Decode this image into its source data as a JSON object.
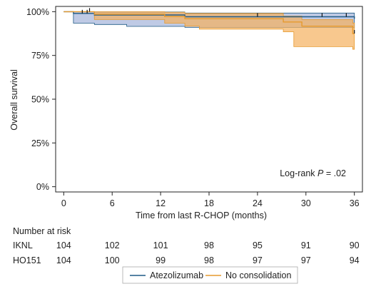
{
  "chart_data": {
    "type": "line",
    "subtype": "kaplan-meier",
    "xlabel": "Time from last R-CHOP (months)",
    "ylabel": "Overall survival",
    "xlim": [
      -1,
      37
    ],
    "ylim": [
      -0.03,
      1.03
    ],
    "x_ticks": [
      0,
      6,
      12,
      18,
      24,
      30,
      36
    ],
    "y_ticks": [
      {
        "value": 0,
        "label": "0%"
      },
      {
        "value": 0.25,
        "label": "25%"
      },
      {
        "value": 0.5,
        "label": "50%"
      },
      {
        "value": 0.75,
        "label": "75%"
      },
      {
        "value": 1,
        "label": "100%"
      }
    ],
    "annotation": {
      "prefix": "Log-rank ",
      "p": "P",
      "suffix": " = .02"
    },
    "series": [
      {
        "name": "Atezolizumab",
        "color": "#1f5a85",
        "fill": "#8a9ed0",
        "steps": [
          [
            0,
            1.0
          ],
          [
            1.2,
            0.99
          ],
          [
            3.8,
            0.981
          ],
          [
            15,
            0.971
          ],
          [
            36,
            0.96
          ]
        ],
        "ci_upper": [
          [
            0,
            1.0
          ],
          [
            1.2,
            1.0
          ],
          [
            3.8,
            0.998
          ],
          [
            15,
            0.992
          ],
          [
            36,
            0.992
          ]
        ],
        "ci_lower": [
          [
            0,
            1.0
          ],
          [
            1.2,
            0.934
          ],
          [
            3.8,
            0.927
          ],
          [
            7.8,
            0.916
          ],
          [
            15,
            0.91
          ],
          [
            36,
            0.905
          ]
        ],
        "censor": [
          2.3,
          2.9,
          24,
          32,
          35
        ]
      },
      {
        "name": "No consolidation",
        "color": "#e69a2e",
        "fill": "#f5b15e",
        "steps": [
          [
            0,
            1.0
          ],
          [
            3.8,
            0.985
          ],
          [
            12.5,
            0.972
          ],
          [
            15,
            0.96
          ],
          [
            27.2,
            0.941
          ],
          [
            29.5,
            0.917
          ],
          [
            35.8,
            0.875
          ]
        ],
        "ci_upper": [
          [
            0,
            1.0
          ],
          [
            3.8,
            1.0
          ],
          [
            12.5,
            0.997
          ],
          [
            15,
            0.99
          ],
          [
            27.2,
            0.975
          ],
          [
            29.5,
            0.955
          ],
          [
            35.8,
            0.935
          ]
        ],
        "ci_lower": [
          [
            0,
            1.0
          ],
          [
            3.8,
            0.955
          ],
          [
            12.5,
            0.934
          ],
          [
            15,
            0.917
          ],
          [
            16.8,
            0.9
          ],
          [
            27.2,
            0.885
          ],
          [
            28.5,
            0.8
          ],
          [
            35.8,
            0.785
          ]
        ],
        "censor": [
          3.2,
          36
        ]
      }
    ]
  },
  "risk_table": {
    "title": "Number at risk",
    "rows": [
      {
        "label": "IKNL",
        "values": [
          "104",
          "102",
          "101",
          "98",
          "95",
          "91",
          "90"
        ]
      },
      {
        "label": "HO151",
        "values": [
          "104",
          "100",
          "99",
          "98",
          "97",
          "97",
          "94"
        ]
      }
    ]
  },
  "legend": [
    {
      "label": "Atezolizumab",
      "color": "#1f5a85"
    },
    {
      "label": "No consolidation",
      "color": "#e69a2e"
    }
  ]
}
